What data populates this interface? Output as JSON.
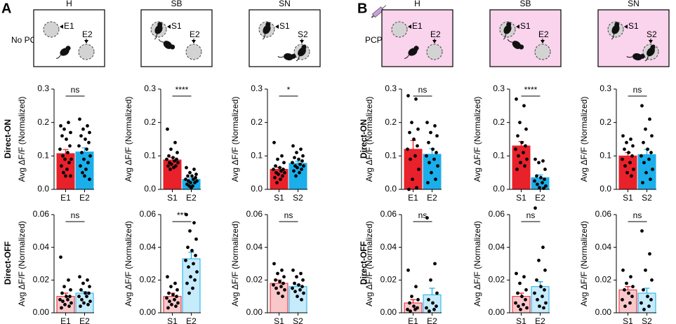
{
  "panels": [
    {
      "letter": "A",
      "condition": "No PCP"
    },
    {
      "letter": "B",
      "condition": "PCP"
    }
  ],
  "row_labels": [
    "Direct-ON",
    "Direct-OFF"
  ],
  "schematics": [
    {
      "title": "H",
      "labels": [
        "E1",
        "E2"
      ]
    },
    {
      "title": "SB",
      "labels": [
        "S1",
        "E2"
      ]
    },
    {
      "title": "SN",
      "labels": [
        "S1",
        "S2"
      ]
    },
    {
      "title": "H",
      "labels": [
        "E1",
        "E2"
      ]
    },
    {
      "title": "SB",
      "labels": [
        "S1",
        "E2"
      ]
    },
    {
      "title": "SN",
      "labels": [
        "S1",
        "S2"
      ]
    }
  ],
  "chart_data": [
    {
      "type": "bar",
      "ylabel": "Avg ΔF/F (Normalized)",
      "categories": [
        "E1",
        "E2"
      ],
      "colors": [
        "#e8212b",
        "#1aaeea"
      ],
      "values": [
        0.107,
        0.112
      ],
      "errors": [
        0.012,
        0.012
      ],
      "points": [
        [
          0.19,
          0.2,
          0.18,
          0.17,
          0.16,
          0.15,
          0.13,
          0.12,
          0.11,
          0.1,
          0.09,
          0.09,
          0.08,
          0.07,
          0.06,
          0.05,
          0.04,
          0.04
        ],
        [
          0.21,
          0.19,
          0.18,
          0.17,
          0.16,
          0.15,
          0.14,
          0.13,
          0.12,
          0.11,
          0.1,
          0.09,
          0.08,
          0.07,
          0.06,
          0.05,
          0.04,
          0.03
        ]
      ],
      "significance": "ns",
      "ylim": [
        0,
        0.3
      ],
      "yticks": [
        {
          "value": 0,
          "label": "0.0"
        },
        0.1,
        0.2,
        0.3
      ]
    },
    {
      "type": "bar",
      "ylabel": "Avg ΔF/F (Normalized)",
      "categories": [
        "S1",
        "E2"
      ],
      "colors": [
        "#e8212b",
        "#1aaeea"
      ],
      "values": [
        0.088,
        0.03
      ],
      "errors": [
        0.007,
        0.004
      ],
      "points": [
        [
          0.18,
          0.14,
          0.12,
          0.11,
          0.1,
          0.095,
          0.09,
          0.09,
          0.085,
          0.08,
          0.08,
          0.075,
          0.07,
          0.07,
          0.065,
          0.06
        ],
        [
          0.065,
          0.06,
          0.05,
          0.045,
          0.04,
          0.04,
          0.035,
          0.03,
          0.03,
          0.025,
          0.025,
          0.02,
          0.02,
          0.015,
          0.01,
          0.01,
          0.005
        ]
      ],
      "significance": "****",
      "ylim": [
        0,
        0.3
      ],
      "yticks": [
        {
          "value": 0,
          "label": "0.0"
        },
        0.1,
        0.2,
        0.3
      ]
    },
    {
      "type": "bar",
      "ylabel": "Avg ΔF/F (Normalized)",
      "categories": [
        "S1",
        "S2"
      ],
      "colors": [
        "#e8212b",
        "#1aaeea"
      ],
      "values": [
        0.06,
        0.078
      ],
      "errors": [
        0.006,
        0.006
      ],
      "points": [
        [
          0.14,
          0.1,
          0.09,
          0.08,
          0.07,
          0.065,
          0.06,
          0.06,
          0.055,
          0.05,
          0.05,
          0.045,
          0.04,
          0.035,
          0.03,
          0.02
        ],
        [
          0.13,
          0.12,
          0.11,
          0.1,
          0.095,
          0.09,
          0.085,
          0.08,
          0.075,
          0.07,
          0.07,
          0.065,
          0.06,
          0.055,
          0.05,
          0.04
        ]
      ],
      "significance": "*",
      "ylim": [
        0,
        0.3
      ],
      "yticks": [
        {
          "value": 0,
          "label": "0.0"
        },
        0.1,
        0.2,
        0.3
      ]
    },
    {
      "type": "bar",
      "ylabel": "Avg ΔF/F (Normalized)",
      "categories": [
        "E1",
        "E2"
      ],
      "colors": [
        "#e8212b",
        "#1aaeea"
      ],
      "values": [
        0.01,
        0.012
      ],
      "errors": [
        0.002,
        0.001
      ],
      "points": [
        [
          0.034,
          0.02,
          0.016,
          0.014,
          0.012,
          0.01,
          0.01,
          0.008,
          0.008,
          0.007,
          0.006,
          0.005,
          0.004,
          0.003
        ],
        [
          0.022,
          0.02,
          0.018,
          0.016,
          0.014,
          0.012,
          0.012,
          0.01,
          0.01,
          0.008,
          0.007,
          0.006,
          0.005,
          0.004
        ]
      ],
      "significance": "ns",
      "ylim": [
        0,
        0.06
      ],
      "yticks": [
        {
          "value": 0,
          "label": "0.00"
        },
        0.02,
        0.04,
        0.06
      ]
    },
    {
      "type": "bar",
      "ylabel": "Avg ΔF/F (Normalized)",
      "categories": [
        "S1",
        "E2"
      ],
      "colors": [
        "#e8212b",
        "#1aaeea"
      ],
      "values": [
        0.01,
        0.033
      ],
      "errors": [
        0.002,
        0.004
      ],
      "points": [
        [
          0.022,
          0.018,
          0.016,
          0.014,
          0.012,
          0.011,
          0.01,
          0.009,
          0.008,
          0.007,
          0.006,
          0.005,
          0.004,
          0.003
        ],
        [
          0.06,
          0.055,
          0.05,
          0.045,
          0.04,
          0.038,
          0.035,
          0.032,
          0.03,
          0.028,
          0.025,
          0.022,
          0.02,
          0.018,
          0.015,
          0.012
        ]
      ],
      "significance": "***",
      "ylim": [
        0,
        0.06
      ],
      "yticks": [
        {
          "value": 0,
          "label": "0.00"
        },
        0.02,
        0.04,
        0.06
      ]
    },
    {
      "type": "bar",
      "ylabel": "Avg ΔF/F (Normalized)",
      "categories": [
        "S1",
        "S2"
      ],
      "colors": [
        "#e8212b",
        "#1aaeea"
      ],
      "values": [
        0.018,
        0.016
      ],
      "errors": [
        0.002,
        0.001
      ],
      "points": [
        [
          0.03,
          0.026,
          0.024,
          0.022,
          0.02,
          0.019,
          0.018,
          0.017,
          0.016,
          0.015,
          0.014,
          0.012,
          0.01
        ],
        [
          0.026,
          0.024,
          0.022,
          0.02,
          0.018,
          0.017,
          0.016,
          0.015,
          0.014,
          0.013,
          0.012,
          0.01,
          0.008
        ]
      ],
      "significance": "ns",
      "ylim": [
        0,
        0.06
      ],
      "yticks": [
        {
          "value": 0,
          "label": "0.00"
        },
        0.02,
        0.04,
        0.06
      ]
    },
    {
      "type": "bar",
      "ylabel": "Avg ΔF/F (Normalized)",
      "categories": [
        "E1",
        "E2"
      ],
      "colors": [
        "#e8212b",
        "#1aaeea"
      ],
      "values": [
        0.12,
        0.105
      ],
      "errors": [
        0.026,
        0.017
      ],
      "points": [
        [
          0.28,
          0.27,
          0.2,
          0.18,
          0.17,
          0.15,
          0.13,
          0.12,
          0.1,
          0.09,
          0.06,
          0.03,
          0.005,
          0.0
        ],
        [
          0.2,
          0.19,
          0.17,
          0.16,
          0.14,
          0.12,
          0.11,
          0.1,
          0.09,
          0.08,
          0.07,
          0.05,
          0.03,
          0.02
        ]
      ],
      "significance": "ns",
      "ylim": [
        0,
        0.3
      ],
      "yticks": [
        {
          "value": 0,
          "label": "0.0"
        },
        0.1,
        0.2,
        0.3
      ]
    },
    {
      "type": "bar",
      "ylabel": "Avg ΔF/F (Normalized)",
      "categories": [
        "S1",
        "E2"
      ],
      "colors": [
        "#e8212b",
        "#1aaeea"
      ],
      "values": [
        0.13,
        0.035
      ],
      "errors": [
        0.013,
        0.008
      ],
      "points": [
        [
          0.27,
          0.25,
          0.2,
          0.18,
          0.16,
          0.14,
          0.13,
          0.12,
          0.11,
          0.1,
          0.09,
          0.08,
          0.07,
          0.06
        ],
        [
          0.09,
          0.085,
          0.08,
          0.06,
          0.04,
          0.035,
          0.03,
          0.025,
          0.02,
          0.015,
          0.01,
          0.005,
          0.003
        ]
      ],
      "significance": "****",
      "ylim": [
        0,
        0.3
      ],
      "yticks": [
        {
          "value": 0,
          "label": "0.0"
        },
        0.1,
        0.2,
        0.3
      ]
    },
    {
      "type": "bar",
      "ylabel": "Avg ΔF/F (Normalized)",
      "categories": [
        "S1",
        "S2"
      ],
      "colors": [
        "#e8212b",
        "#1aaeea"
      ],
      "values": [
        0.1,
        0.104
      ],
      "errors": [
        0.01,
        0.015
      ],
      "points": [
        [
          0.16,
          0.15,
          0.14,
          0.13,
          0.12,
          0.11,
          0.1,
          0.09,
          0.08,
          0.07,
          0.06,
          0.05,
          0.04
        ],
        [
          0.25,
          0.21,
          0.18,
          0.16,
          0.14,
          0.12,
          0.11,
          0.1,
          0.09,
          0.08,
          0.06,
          0.05,
          0.03,
          0.02
        ]
      ],
      "significance": "ns",
      "ylim": [
        0,
        0.3
      ],
      "yticks": [
        {
          "value": 0,
          "label": "0.0"
        },
        0.1,
        0.2,
        0.3
      ]
    },
    {
      "type": "bar",
      "ylabel": "Avg ΔF/F (Normalized)",
      "categories": [
        "E1",
        "E2"
      ],
      "colors": [
        "#e8212b",
        "#1aaeea"
      ],
      "values": [
        0.006,
        0.011
      ],
      "errors": [
        0.002,
        0.004
      ],
      "points": [
        [
          0.026,
          0.016,
          0.01,
          0.008,
          0.006,
          0.004,
          0.003,
          0.002,
          0.002,
          0.001
        ],
        [
          0.058,
          0.03,
          0.02,
          0.012,
          0.008,
          0.006,
          0.004,
          0.003,
          0.002,
          0.001
        ]
      ],
      "significance": "ns",
      "ylim": [
        0,
        0.06
      ],
      "yticks": [
        {
          "value": 0,
          "label": "0.00"
        },
        0.02,
        0.04,
        0.06
      ]
    },
    {
      "type": "bar",
      "ylabel": "Avg ΔF/F (Normalized)",
      "categories": [
        "S1",
        "E2"
      ],
      "colors": [
        "#e8212b",
        "#1aaeea"
      ],
      "values": [
        0.01,
        0.016
      ],
      "errors": [
        0.002,
        0.003
      ],
      "points": [
        [
          0.024,
          0.022,
          0.018,
          0.014,
          0.012,
          0.01,
          0.008,
          0.006,
          0.005,
          0.004,
          0.003,
          0.002
        ],
        [
          0.064,
          0.04,
          0.032,
          0.026,
          0.02,
          0.016,
          0.014,
          0.012,
          0.01,
          0.008,
          0.006,
          0.004,
          0.003
        ]
      ],
      "significance": "ns",
      "ylim": [
        0,
        0.06
      ],
      "yticks": [
        {
          "value": 0,
          "label": "0.00"
        },
        0.02,
        0.04,
        0.06
      ]
    },
    {
      "type": "bar",
      "ylabel": "Avg ΔF/F (Normalized)",
      "categories": [
        "S1",
        "S2"
      ],
      "colors": [
        "#e8212b",
        "#1aaeea"
      ],
      "values": [
        0.014,
        0.012
      ],
      "errors": [
        0.002,
        0.003
      ],
      "points": [
        [
          0.026,
          0.022,
          0.018,
          0.016,
          0.014,
          0.012,
          0.01,
          0.008,
          0.006,
          0.004
        ],
        [
          0.05,
          0.036,
          0.026,
          0.02,
          0.014,
          0.01,
          0.008,
          0.006,
          0.004,
          0.002
        ]
      ],
      "significance": "ns",
      "ylim": [
        0,
        0.06
      ],
      "yticks": [
        {
          "value": 0,
          "label": "0.00"
        },
        0.02,
        0.04,
        0.06
      ]
    }
  ]
}
